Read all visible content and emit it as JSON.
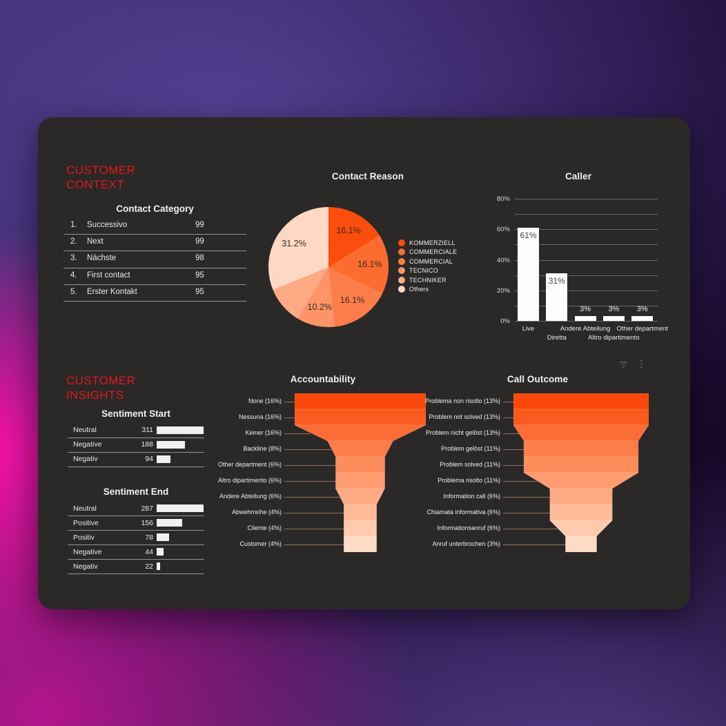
{
  "headings": {
    "context": "CUSTOMER CONTEXT",
    "insights": "CUSTOMER INSIGHTS"
  },
  "icons": {
    "filter": "filter-icon",
    "menu": "kebab-menu-icon"
  },
  "colors": {
    "card_bg": "#2b2828",
    "heading_red": "#dd1a1b",
    "bar_white": "#fdfdfd",
    "funnel_ramp": [
      "#f9480a",
      "#fb5a20",
      "#fd6c34",
      "#fe7d48",
      "#ff8c5b",
      "#ff9b6f",
      "#ffaa82",
      "#ffba98",
      "#ffcaae",
      "#ffdbc6"
    ],
    "pie_colors": [
      "#fb4d0c",
      "#fc6c31",
      "#fd7d4a",
      "#fe9468",
      "#feaa85",
      "#ffd8c4"
    ]
  },
  "chart_data": [
    {
      "type": "table",
      "title": "Contact Category",
      "columns": [
        "rank",
        "category",
        "count"
      ],
      "rows": [
        {
          "rank": "1.",
          "label": "Successivo",
          "value": "99"
        },
        {
          "rank": "2.",
          "label": "Next",
          "value": "99"
        },
        {
          "rank": "3.",
          "label": "Nächste",
          "value": "98"
        },
        {
          "rank": "4.",
          "label": "First contact",
          "value": "95"
        },
        {
          "rank": "5.",
          "label": "Erster Kontakt",
          "value": "95"
        }
      ]
    },
    {
      "type": "pie",
      "title": "Contact Reason",
      "legend_position": "right",
      "slices": [
        {
          "label": "KOMMERZIELL",
          "value": 16.1,
          "display": "16.1%"
        },
        {
          "label": "COMMERCIALE",
          "value": 16.1,
          "display": "16.1%"
        },
        {
          "label": "COMMERCIAL",
          "value": 16.1,
          "display": "16.1%"
        },
        {
          "label": "TECNICO",
          "value": 10.2,
          "display": "10.2%"
        },
        {
          "label": "TECHNIKER",
          "value": 10.3,
          "display": null
        },
        {
          "label": "Others",
          "value": 31.2,
          "display": "31.2%"
        }
      ]
    },
    {
      "type": "bar",
      "title": "Caller",
      "categories": [
        "Live",
        "Diretta",
        "Andere Abteilung",
        "Altro dipartimento",
        "Other department"
      ],
      "values": [
        61,
        31,
        3,
        3,
        3
      ],
      "value_labels": [
        "61%",
        "31%",
        "3%",
        "3%",
        "3%"
      ],
      "ylim": [
        0,
        80
      ],
      "ytick_labels": [
        "80%",
        "60%",
        "40%",
        "20%",
        "0%"
      ],
      "grid_step_pct": 10,
      "grid": true
    },
    {
      "type": "table",
      "title": "Sentiment Start",
      "bars": true,
      "rows": [
        {
          "label": "Neutral",
          "value": 311
        },
        {
          "label": "Negative",
          "value": 188
        },
        {
          "label": "Negativ",
          "value": 94
        }
      ]
    },
    {
      "type": "table",
      "title": "Sentiment End",
      "bars": true,
      "rows": [
        {
          "label": "Neutral",
          "value": 287
        },
        {
          "label": "Positive",
          "value": 156
        },
        {
          "label": "Positiv",
          "value": 78
        },
        {
          "label": "Negative",
          "value": 44
        },
        {
          "label": "Negativ",
          "value": 22
        }
      ]
    },
    {
      "type": "funnel",
      "title": "Accountability",
      "stages": [
        {
          "label": "None (16%)",
          "value": 16
        },
        {
          "label": "Nessuna (16%)",
          "value": 16
        },
        {
          "label": "Keiner (16%)",
          "value": 16
        },
        {
          "label": "Backline (8%)",
          "value": 8
        },
        {
          "label": "Other department (6%)",
          "value": 6
        },
        {
          "label": "Altro dipartimento (6%)",
          "value": 6
        },
        {
          "label": "Andere Abteilung (6%)",
          "value": 6
        },
        {
          "label": "Abwehrreihe (4%)",
          "value": 4
        },
        {
          "label": "Cliente (4%)",
          "value": 4
        },
        {
          "label": "Customer (4%)",
          "value": 4
        }
      ]
    },
    {
      "type": "funnel",
      "title": "Call Outcome",
      "stages": [
        {
          "label": "Problema non risolto (13%)",
          "value": 13
        },
        {
          "label": "Problem not solved (13%)",
          "value": 13
        },
        {
          "label": "Problem nicht gelöst (13%)",
          "value": 13
        },
        {
          "label": "Problem gelöst (11%)",
          "value": 11
        },
        {
          "label": "Problem solved (11%)",
          "value": 11
        },
        {
          "label": "Problema risolto (11%)",
          "value": 11
        },
        {
          "label": "Information call (6%)",
          "value": 6
        },
        {
          "label": "Chiamata informativa (6%)",
          "value": 6
        },
        {
          "label": "Informationsanruf (6%)",
          "value": 6
        },
        {
          "label": "Anruf unterbrochen (3%)",
          "value": 3
        }
      ]
    }
  ]
}
